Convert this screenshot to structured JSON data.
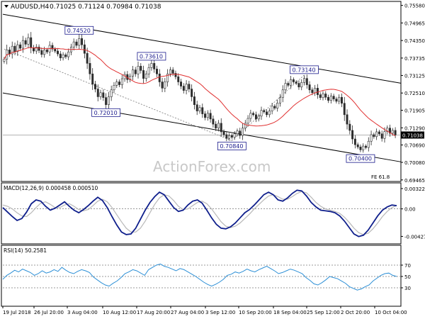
{
  "header": {
    "symbol_label": "AUDUSD,H4",
    "ohlc_values": "0.71025 0.71124 0.70984 0.71038"
  },
  "watermark": "ActionForex.com",
  "colors": {
    "candle": "#2b2b2b",
    "ma_line": "#e03030",
    "macd_line": "#0f1f8c",
    "signal_line": "#b8b8b8",
    "rsi_line": "#2c8fd6",
    "label_box": "#1a1a8c",
    "grid_dotted": "#777777"
  },
  "chart_data": [
    {
      "type": "candlestick",
      "title": "AUDUSD,H4",
      "ylim": [
        0.6946,
        0.7562
      ],
      "y_ticks": [
        "0.75580",
        "0.74965",
        "0.74350",
        "0.73735",
        "0.73125",
        "0.72510",
        "0.71905",
        "0.71290",
        "0.70690",
        "0.70080",
        "0.69465"
      ],
      "x_tick_labels": [
        "19 Jul 2018",
        "26 Jul 20:00",
        "3 Aug 04:00",
        "10 Aug 12:00",
        "17 Aug 20:00",
        "27 Aug 04:00",
        "3 Sep 12:00",
        "10 Sep 20:00",
        "18 Sep 04:00",
        "25 Sep 12:00",
        "2 Oct 20:00",
        "10 Oct 04:00"
      ],
      "current_price": "0.71038",
      "ma_label": "FE 61.8",
      "pivots": [
        {
          "label": "0.74520",
          "x_index": 28,
          "value": 0.7452,
          "side": "above"
        },
        {
          "label": "0.72010",
          "x_index": 38,
          "value": 0.7201,
          "side": "below"
        },
        {
          "label": "0.73610",
          "x_index": 55,
          "value": 0.7361,
          "side": "above"
        },
        {
          "label": "0.70840",
          "x_index": 85,
          "value": 0.7084,
          "side": "below"
        },
        {
          "label": "0.73140",
          "x_index": 112,
          "value": 0.7314,
          "side": "above"
        },
        {
          "label": "0.70400",
          "x_index": 133,
          "value": 0.704,
          "side": "below"
        }
      ],
      "close": [
        0.737,
        0.7402,
        0.7388,
        0.7415,
        0.7396,
        0.742,
        0.7408,
        0.7435,
        0.7422,
        0.7445,
        0.741,
        0.7398,
        0.7412,
        0.74,
        0.7386,
        0.7402,
        0.7395,
        0.7418,
        0.7405,
        0.7398,
        0.7388,
        0.7374,
        0.7385,
        0.7378,
        0.7395,
        0.7412,
        0.743,
        0.7418,
        0.7442,
        0.742,
        0.739,
        0.7355,
        0.7318,
        0.7282,
        0.7265,
        0.7238,
        0.7252,
        0.7235,
        0.721,
        0.7238,
        0.7262,
        0.7278,
        0.729,
        0.728,
        0.7301,
        0.7316,
        0.7298,
        0.731,
        0.7332,
        0.7318,
        0.7345,
        0.733,
        0.7302,
        0.7318,
        0.734,
        0.7355,
        0.7335,
        0.7318,
        0.729,
        0.7268,
        0.729,
        0.7318,
        0.7332,
        0.732,
        0.7308,
        0.729,
        0.7275,
        0.726,
        0.7282,
        0.7265,
        0.7238,
        0.721,
        0.7188,
        0.72,
        0.7178,
        0.7165,
        0.718,
        0.716,
        0.7142,
        0.7128,
        0.7145,
        0.7115,
        0.7105,
        0.7092,
        0.7102,
        0.7096,
        0.7108,
        0.7118,
        0.7102,
        0.7128,
        0.7145,
        0.7162,
        0.718,
        0.7175,
        0.716,
        0.717,
        0.719,
        0.7185,
        0.7175,
        0.7188,
        0.7205,
        0.7198,
        0.7216,
        0.7235,
        0.7262,
        0.7285,
        0.7278,
        0.7298,
        0.729,
        0.7285,
        0.7272,
        0.7288,
        0.7302,
        0.728,
        0.7262,
        0.7252,
        0.7268,
        0.7245,
        0.7235,
        0.7248,
        0.7236,
        0.7225,
        0.724,
        0.723,
        0.7222,
        0.7236,
        0.7215,
        0.7175,
        0.7142,
        0.712,
        0.709,
        0.707,
        0.7062,
        0.7052,
        0.7065,
        0.706,
        0.7082,
        0.7105,
        0.7098,
        0.7115,
        0.7108,
        0.7092,
        0.7116,
        0.7128,
        0.711,
        0.712,
        0.7104
      ]
    },
    {
      "type": "line",
      "title": "MACD(12,26,9) 0.000458 0.000510",
      "ylim": [
        -0.005,
        0.0036
      ],
      "y_ticks": [
        "0.003227",
        "0.00",
        "-0.004279"
      ],
      "macd": [
        0.0002,
        -0.0005,
        -0.0012,
        -0.0018,
        -0.0015,
        -0.0005,
        0.0008,
        0.0014,
        0.0012,
        0.0004,
        -0.0002,
        0.0001,
        0.0006,
        0.0011,
        0.0004,
        -0.0002,
        -0.0006,
        -0.0001,
        0.0005,
        0.0012,
        0.0018,
        0.0013,
        0.0002,
        -0.0012,
        -0.0025,
        -0.0036,
        -0.004,
        -0.0039,
        -0.003,
        -0.0016,
        -0.0002,
        0.001,
        0.0019,
        0.0026,
        0.0022,
        0.0012,
        0.0002,
        -0.0004,
        -0.0002,
        0.0006,
        0.0012,
        0.0014,
        0.0009,
        -0.0002,
        -0.0014,
        -0.0024,
        -0.003,
        -0.0031,
        -0.0028,
        -0.0022,
        -0.0014,
        -0.0006,
        -0.0001,
        0.0006,
        0.0014,
        0.0022,
        0.0026,
        0.0022,
        0.0014,
        0.0012,
        0.0017,
        0.0024,
        0.0029,
        0.0028,
        0.002,
        0.001,
        0.0003,
        -0.0002,
        -0.0003,
        -0.0004,
        -0.0006,
        -0.0011,
        -0.0019,
        -0.0029,
        -0.0039,
        -0.0043,
        -0.0041,
        -0.0033,
        -0.0022,
        -0.0011,
        -0.0002,
        0.0003,
        0.0006,
        0.0005
      ],
      "signal": [
        0.0006,
        0.0004,
        0.0,
        -0.0006,
        -0.0011,
        -0.0012,
        -0.0006,
        0.0002,
        0.0009,
        0.0011,
        0.0007,
        0.0002,
        0.0002,
        0.0006,
        0.0008,
        0.0004,
        -0.0001,
        -0.0003,
        -0.0001,
        0.0005,
        0.0012,
        0.0015,
        0.0011,
        0.0002,
        -0.0009,
        -0.002,
        -0.003,
        -0.0036,
        -0.0036,
        -0.003,
        -0.0019,
        -0.0006,
        0.0007,
        0.0017,
        0.0022,
        0.002,
        0.0013,
        0.0004,
        -0.0001,
        0.0,
        0.0005,
        0.001,
        0.0012,
        0.0008,
        0.0,
        -0.001,
        -0.002,
        -0.0027,
        -0.0029,
        -0.0027,
        -0.0022,
        -0.0015,
        -0.0008,
        0.0,
        0.0007,
        0.0014,
        0.002,
        0.0022,
        0.0019,
        0.0015,
        0.0015,
        0.0019,
        0.0024,
        0.0027,
        0.0025,
        0.0018,
        0.001,
        0.0004,
        0.0,
        -0.0002,
        -0.0004,
        -0.0007,
        -0.0013,
        -0.0021,
        -0.003,
        -0.0037,
        -0.004,
        -0.0038,
        -0.0031,
        -0.0022,
        -0.0012,
        -0.0004,
        0.0002,
        0.0005
      ]
    },
    {
      "type": "line",
      "title": "RSI(14) 50.2581",
      "ylim": [
        0,
        100
      ],
      "levels": [
        70,
        50,
        30
      ],
      "y_ticks": [
        "70",
        "50",
        "30"
      ],
      "values": [
        45,
        52,
        56,
        61,
        58,
        63,
        60,
        57,
        52,
        55,
        60,
        56,
        58,
        62,
        59,
        66,
        61,
        57,
        55,
        59,
        62,
        60,
        57,
        49,
        44,
        39,
        35,
        33,
        38,
        42,
        48,
        55,
        58,
        62,
        60,
        56,
        52,
        62,
        66,
        70,
        72,
        68,
        66,
        63,
        60,
        64,
        62,
        58,
        54,
        50,
        45,
        40,
        36,
        33,
        36,
        40,
        45,
        52,
        54,
        58,
        56,
        59,
        63,
        60,
        58,
        62,
        65,
        68,
        64,
        60,
        55,
        57,
        60,
        63,
        61,
        58,
        55,
        48,
        43,
        37,
        35,
        39,
        44,
        50,
        48,
        46,
        42,
        38,
        32,
        29,
        26,
        28,
        32,
        35,
        42,
        47,
        52,
        55,
        56,
        52,
        50
      ]
    }
  ]
}
